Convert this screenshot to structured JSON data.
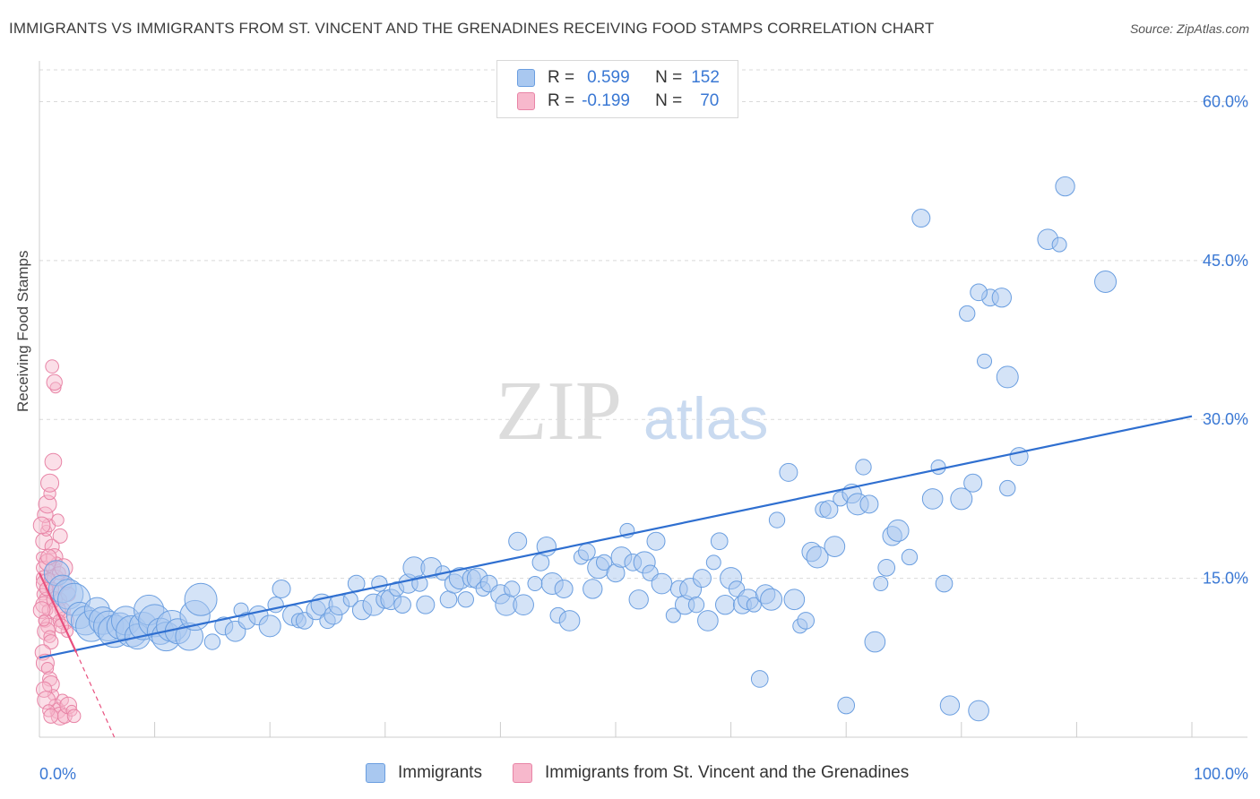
{
  "title": "IMMIGRANTS VS IMMIGRANTS FROM ST. VINCENT AND THE GRENADINES RECEIVING FOOD STAMPS CORRELATION CHART",
  "source": "Source: ZipAtlas.com",
  "watermark": {
    "zip": "ZIP",
    "atlas": "atlas"
  },
  "colors": {
    "blue_fill": "#a9c8f0",
    "blue_stroke": "#6a9ee0",
    "blue_line": "#2f6fd0",
    "pink_fill": "#f7b8cc",
    "pink_stroke": "#e884a6",
    "pink_line": "#e8507e",
    "grid": "#d9d9d9",
    "axis_text": "#3a78d4"
  },
  "legend": {
    "rows": [
      {
        "r_label": "R =",
        "r_value": "0.599",
        "n_label": "N =",
        "n_value": "152"
      },
      {
        "r_label": "R =",
        "r_value": "-0.199",
        "n_label": "N =",
        "n_value": "70"
      }
    ]
  },
  "bottom_legend": [
    "Immigrants",
    "Immigrants from St. Vincent and the Grenadines"
  ],
  "chart_data": {
    "type": "scatter",
    "xlabel": "",
    "ylabel": "Receiving Food Stamps",
    "xlim": [
      0,
      100
    ],
    "ylim": [
      0,
      63
    ],
    "x_tick_labels": [
      "0.0%",
      "100.0%"
    ],
    "y_ticks": [
      15,
      30,
      45,
      60
    ],
    "y_tick_labels": [
      "15.0%",
      "30.0%",
      "45.0%",
      "60.0%"
    ],
    "grid": true,
    "series": [
      {
        "name": "Immigrants",
        "trend": {
          "x0": 0,
          "y0": 7.5,
          "x1": 100,
          "y1": 30.3
        },
        "points": [
          [
            1.5,
            15.5
          ],
          [
            2,
            14
          ],
          [
            2.5,
            13.5
          ],
          [
            3,
            13
          ],
          [
            3.5,
            11.5
          ],
          [
            4,
            11
          ],
          [
            4.5,
            10.5
          ],
          [
            5,
            12
          ],
          [
            5.5,
            11
          ],
          [
            6,
            10.5
          ],
          [
            6.5,
            10
          ],
          [
            7,
            10.5
          ],
          [
            7.5,
            11
          ],
          [
            8,
            10
          ],
          [
            8.5,
            9.5
          ],
          [
            9,
            10.5
          ],
          [
            9.5,
            12
          ],
          [
            10,
            11
          ],
          [
            10.5,
            10
          ],
          [
            11,
            9.5
          ],
          [
            11.5,
            10.5
          ],
          [
            12,
            10
          ],
          [
            13,
            9.5
          ],
          [
            13.5,
            11.5
          ],
          [
            14,
            13
          ],
          [
            15,
            9
          ],
          [
            16,
            10.5
          ],
          [
            17,
            10
          ],
          [
            17.5,
            12
          ],
          [
            18,
            11
          ],
          [
            19,
            11.5
          ],
          [
            20,
            10.5
          ],
          [
            20.5,
            12.5
          ],
          [
            21,
            14
          ],
          [
            22,
            11.5
          ],
          [
            22.5,
            11
          ],
          [
            23,
            11
          ],
          [
            24,
            12
          ],
          [
            24.5,
            12.5
          ],
          [
            25,
            11
          ],
          [
            25.5,
            11.5
          ],
          [
            26,
            12.5
          ],
          [
            27,
            13
          ],
          [
            27.5,
            14.5
          ],
          [
            28,
            12
          ],
          [
            29,
            12.5
          ],
          [
            29.5,
            14.5
          ],
          [
            30,
            13
          ],
          [
            30.5,
            13
          ],
          [
            31,
            14
          ],
          [
            31.5,
            12.5
          ],
          [
            32,
            14.5
          ],
          [
            32.5,
            16
          ],
          [
            33,
            14.5
          ],
          [
            33.5,
            12.5
          ],
          [
            34,
            16
          ],
          [
            35,
            15.5
          ],
          [
            35.5,
            13
          ],
          [
            36,
            14.5
          ],
          [
            36.5,
            15
          ],
          [
            37,
            13
          ],
          [
            37.5,
            15
          ],
          [
            38,
            15
          ],
          [
            38.5,
            14
          ],
          [
            39,
            14.5
          ],
          [
            40,
            13.5
          ],
          [
            40.5,
            12.5
          ],
          [
            41,
            14
          ],
          [
            41.5,
            18.5
          ],
          [
            42,
            12.5
          ],
          [
            43,
            14.5
          ],
          [
            43.5,
            16.5
          ],
          [
            44,
            18
          ],
          [
            44.5,
            14.5
          ],
          [
            45,
            11.5
          ],
          [
            45.5,
            14
          ],
          [
            46,
            11
          ],
          [
            47,
            17
          ],
          [
            47.5,
            17.5
          ],
          [
            48,
            14
          ],
          [
            48.5,
            16
          ],
          [
            49,
            16.5
          ],
          [
            50,
            15.5
          ],
          [
            50.5,
            17
          ],
          [
            51,
            19.5
          ],
          [
            51.5,
            16.5
          ],
          [
            52,
            13
          ],
          [
            52.5,
            16.5
          ],
          [
            53,
            15.5
          ],
          [
            53.5,
            18.5
          ],
          [
            54,
            14.5
          ],
          [
            55,
            11.5
          ],
          [
            55.5,
            14
          ],
          [
            56,
            12.5
          ],
          [
            56.5,
            14
          ],
          [
            57,
            12.5
          ],
          [
            57.5,
            15
          ],
          [
            58,
            11
          ],
          [
            58.5,
            16.5
          ],
          [
            59,
            18.5
          ],
          [
            59.5,
            12.5
          ],
          [
            60,
            15
          ],
          [
            60.5,
            14
          ],
          [
            61,
            12.5
          ],
          [
            61.5,
            13
          ],
          [
            62,
            12.5
          ],
          [
            62.5,
            5.5
          ],
          [
            63,
            13.5
          ],
          [
            63.5,
            13
          ],
          [
            64,
            20.5
          ],
          [
            65,
            25
          ],
          [
            65.5,
            13
          ],
          [
            66,
            10.5
          ],
          [
            66.5,
            11
          ],
          [
            67,
            17.5
          ],
          [
            67.5,
            17
          ],
          [
            68,
            21.5
          ],
          [
            68.5,
            21.5
          ],
          [
            69,
            18
          ],
          [
            69.5,
            22.5
          ],
          [
            70,
            3
          ],
          [
            70.5,
            23
          ],
          [
            71,
            22
          ],
          [
            71.5,
            25.5
          ],
          [
            72,
            22
          ],
          [
            72.5,
            9
          ],
          [
            73,
            14.5
          ],
          [
            73.5,
            16
          ],
          [
            74,
            19
          ],
          [
            74.5,
            19.5
          ],
          [
            75.5,
            17
          ],
          [
            76.5,
            49
          ],
          [
            77.5,
            22.5
          ],
          [
            78,
            25.5
          ],
          [
            78.5,
            14.5
          ],
          [
            79,
            3
          ],
          [
            80,
            22.5
          ],
          [
            80.5,
            40
          ],
          [
            81,
            24
          ],
          [
            81.5,
            2.5
          ],
          [
            82,
            35.5
          ],
          [
            82.5,
            41.5
          ],
          [
            83.5,
            41.5
          ],
          [
            84,
            34
          ],
          [
            84,
            23.5
          ],
          [
            85,
            26.5
          ],
          [
            87.5,
            47
          ],
          [
            88.5,
            46.5
          ],
          [
            81.5,
            42
          ],
          [
            89,
            52
          ],
          [
            92.5,
            43
          ]
        ]
      },
      {
        "name": "Immigrants from St. Vincent and the Grenadines",
        "trend": {
          "x0": 0,
          "y0": 15.5,
          "x1": 3.2,
          "y1": 8.0,
          "dash_x1": 6.5,
          "dash_y1": 0
        },
        "points": [
          [
            0.2,
            17
          ],
          [
            0.3,
            16
          ],
          [
            0.4,
            15
          ],
          [
            0.5,
            14.5
          ],
          [
            0.3,
            13.5
          ],
          [
            0.6,
            13
          ],
          [
            0.4,
            12.5
          ],
          [
            0.7,
            12
          ],
          [
            0.5,
            11
          ],
          [
            0.8,
            10.5
          ],
          [
            0.6,
            10
          ],
          [
            0.9,
            9.5
          ],
          [
            1,
            9
          ],
          [
            0.4,
            18.5
          ],
          [
            0.6,
            19.5
          ],
          [
            0.8,
            20
          ],
          [
            0.5,
            21
          ],
          [
            0.7,
            22
          ],
          [
            0.9,
            23
          ],
          [
            1.2,
            16
          ],
          [
            1.4,
            15
          ],
          [
            1.6,
            14
          ],
          [
            1.8,
            13
          ],
          [
            2,
            12
          ],
          [
            2.2,
            11
          ],
          [
            2.4,
            10
          ],
          [
            1.1,
            18
          ],
          [
            1.3,
            17
          ],
          [
            1.5,
            16.5
          ],
          [
            1.7,
            15.5
          ],
          [
            0.3,
            8
          ],
          [
            0.5,
            7
          ],
          [
            0.7,
            6.5
          ],
          [
            0.9,
            5.5
          ],
          [
            1,
            5
          ],
          [
            1.2,
            4
          ],
          [
            1.4,
            3
          ],
          [
            1.6,
            2.5
          ],
          [
            1.8,
            2
          ],
          [
            2,
            3.5
          ],
          [
            2.2,
            2
          ],
          [
            2.5,
            3
          ],
          [
            2.8,
            2.5
          ],
          [
            3,
            2
          ],
          [
            0.4,
            4.5
          ],
          [
            0.6,
            3.5
          ],
          [
            0.8,
            2.5
          ],
          [
            1,
            2
          ],
          [
            1.2,
            26
          ],
          [
            1.4,
            33
          ],
          [
            1.1,
            35
          ],
          [
            1.3,
            33.5
          ],
          [
            0.9,
            24
          ],
          [
            1.6,
            20.5
          ],
          [
            1.8,
            19
          ],
          [
            0.7,
            16.5
          ],
          [
            0.9,
            15
          ],
          [
            1.1,
            14
          ],
          [
            1.3,
            13
          ],
          [
            1.5,
            12
          ],
          [
            1.7,
            11
          ],
          [
            1.9,
            10.5
          ],
          [
            0.2,
            12
          ],
          [
            0.4,
            11
          ],
          [
            0.6,
            14
          ],
          [
            0.8,
            17
          ],
          [
            2.1,
            16
          ],
          [
            2.3,
            14.5
          ],
          [
            2.5,
            13.5
          ],
          [
            0.2,
            20
          ]
        ]
      }
    ]
  }
}
